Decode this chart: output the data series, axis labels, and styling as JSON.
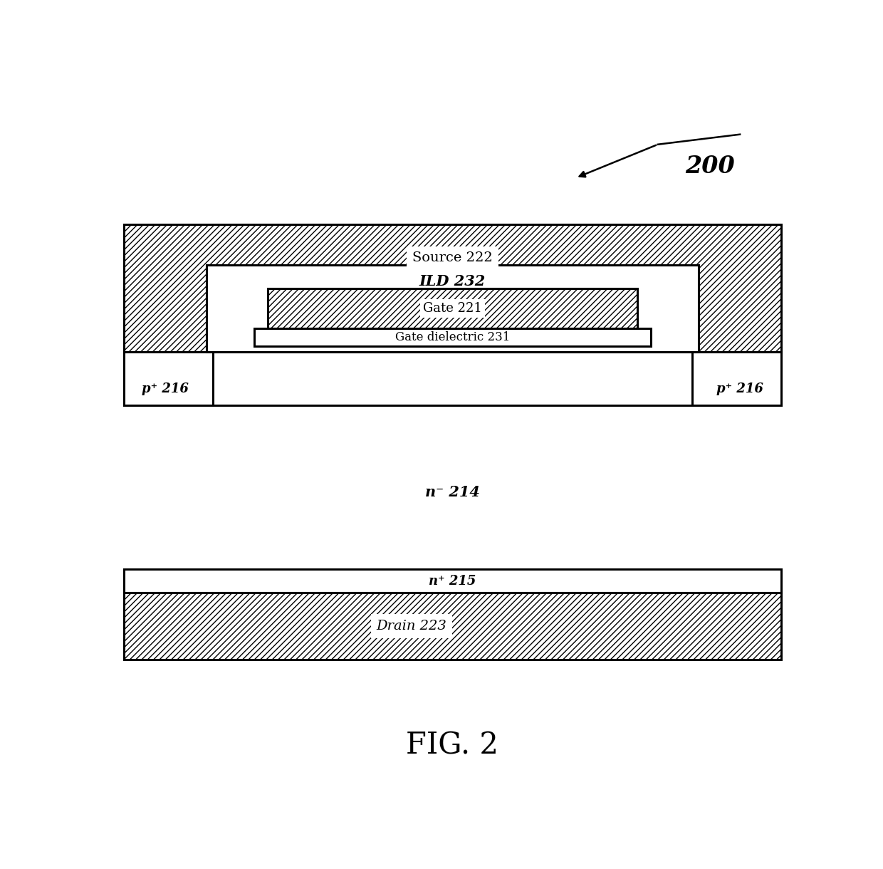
{
  "fig_width": 12.4,
  "fig_height": 12.2,
  "bg_color": "#ffffff",
  "label_200": "200",
  "label_fig": "FIG. 2",
  "source_label": "Source 222",
  "ild_label": "ILD 232",
  "gate_label": "Gate 221",
  "gate_dielectric_label": "Gate dielectric 231",
  "p_left_label": "p⁺ 216",
  "p_right_label": "p⁺ 216",
  "n_minus_label": "n⁻ 214",
  "n_plus_label": "n⁺ 215",
  "drain_label": "Drain 223",
  "line_color": "#000000",
  "fill_color": "#ffffff"
}
